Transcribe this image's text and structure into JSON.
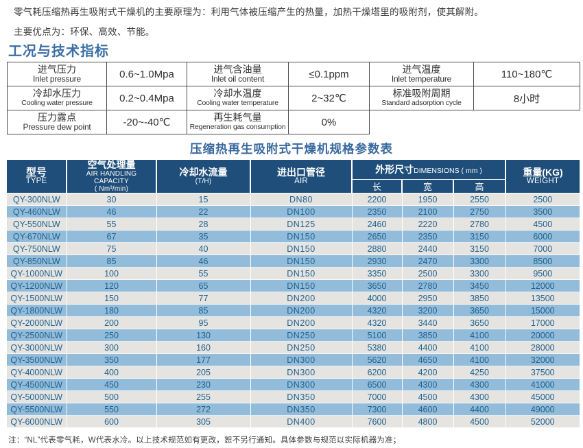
{
  "intro": {
    "line1": "零气耗压缩热再生吸附式干燥机的主要原理为：利用气体被压缩产生的热量，加热干燥塔里的吸附剂，使其解附。",
    "line2": "主要优点为：环保、高效、节能。"
  },
  "section_title": "工况与技术指标",
  "spec_table": {
    "rows": [
      {
        "c1_zh": "进气压力",
        "c1_en": "Inlet pressure",
        "v1": "0.6~1.0Mpa",
        "c2_zh": "进气含油量",
        "c2_en": "Inlet oil content",
        "v2": "≤0.1ppm",
        "c3_zh": "进气温度",
        "c3_en": "Inlet temperature",
        "v3": "110~180℃"
      },
      {
        "c1_zh": "冷却水压力",
        "c1_en": "Cooling water pressure",
        "v1": "0.2~0.4Mpa",
        "c2_zh": "冷却水温度",
        "c2_en": "Cooling water temperature",
        "v2": "2~32℃",
        "c3_zh": "标准吸附周期",
        "c3_en": "Standard adsorption cycle",
        "v3": "8小时"
      },
      {
        "c1_zh": "压力露点",
        "c1_en": "Pressure dew point",
        "v1": "-20~-40℃",
        "c2_zh": "再生耗气量",
        "c2_en": "Regeneration gas consumption",
        "v2": "0%",
        "c3_zh": "",
        "c3_en": "",
        "v3": ""
      }
    ]
  },
  "main_table": {
    "title": "压缩热再生吸附式干燥机规格参数表",
    "headers": {
      "type_zh": "型号",
      "type_en": "TYPE",
      "capacity_zh": "空气处理量",
      "capacity_en": "AIR HANDLING CAPACITY",
      "capacity_unit": "( Nm³/min)",
      "cooling_zh": "冷却水流量",
      "cooling_unit": "(T/H)",
      "pipe_zh": "进出口管径",
      "pipe_en": "AIR",
      "dims_zh": "外形尺寸",
      "dims_en": "DIMENSIONS ( mm )",
      "dim_len": "长",
      "dim_wid": "宽",
      "dim_hgt": "高",
      "weight_zh": "重量(KG)",
      "weight_en": "WEIGHT"
    },
    "rows": [
      [
        "QY-300NLW",
        "30",
        "15",
        "DN80",
        "2200",
        "1950",
        "2550",
        "2500"
      ],
      [
        "QY-460NLW",
        "46",
        "22",
        "DN100",
        "2350",
        "2100",
        "2750",
        "3500"
      ],
      [
        "QY-550NLW",
        "55",
        "28",
        "DN125",
        "2460",
        "2220",
        "2780",
        "4500"
      ],
      [
        "QY-670NLW",
        "67",
        "35",
        "DN150",
        "2650",
        "2350",
        "3150",
        "6000"
      ],
      [
        "QY-750NLW",
        "75",
        "40",
        "DN150",
        "2880",
        "2440",
        "3150",
        "7000"
      ],
      [
        "QY-850NLW",
        "85",
        "46",
        "DN150",
        "2930",
        "2470",
        "3300",
        "8500"
      ],
      [
        "QY-1000NLW",
        "100",
        "55",
        "DN150",
        "3350",
        "2500",
        "3300",
        "9500"
      ],
      [
        "QY-1200NLW",
        "120",
        "65",
        "DN150",
        "3650",
        "2780",
        "3450",
        "12000"
      ],
      [
        "QY-1500NLW",
        "150",
        "77",
        "DN200",
        "4000",
        "2950",
        "3850",
        "13500"
      ],
      [
        "QY-1800NLW",
        "180",
        "85",
        "DN200",
        "4320",
        "3200",
        "3650",
        "15000"
      ],
      [
        "QY-2000NLW",
        "200",
        "95",
        "DN200",
        "4320",
        "3440",
        "3650",
        "17000"
      ],
      [
        "QY-2500NLW",
        "250",
        "130",
        "DN250",
        "5100",
        "3850",
        "4100",
        "20000"
      ],
      [
        "QY-3000NLW",
        "300",
        "160",
        "DN250",
        "5380",
        "4400",
        "4100",
        "28000"
      ],
      [
        "QY-3500NLW",
        "350",
        "177",
        "DN300",
        "5620",
        "4650",
        "4100",
        "32000"
      ],
      [
        "QY-4000NLW",
        "400",
        "205",
        "DN300",
        "6200",
        "4200",
        "4250",
        "37500"
      ],
      [
        "QY-4500NLW",
        "450",
        "230",
        "DN300",
        "6500",
        "4300",
        "4300",
        "41000"
      ],
      [
        "QY-5000NLW",
        "500",
        "255",
        "DN350",
        "7000",
        "4500",
        "4300",
        "45000"
      ],
      [
        "QY-5500NLW",
        "550",
        "272",
        "DN350",
        "7300",
        "4600",
        "4400",
        "49000"
      ],
      [
        "QY-6000NLW",
        "600",
        "305",
        "DN400",
        "7600",
        "4800",
        "4500",
        "52000"
      ]
    ]
  },
  "footnote": "注：“NL”代表零气耗，W代表水冷。以上技术规范如有更改，恕不另行通知。具体参数与规范以实际机器为准；",
  "colors": {
    "header_navy": "#1e4e79",
    "row_blue": "#92bcda",
    "row_gray": "#e5e4e1",
    "data_text": "#20618e",
    "title_blue": "#38699e"
  }
}
